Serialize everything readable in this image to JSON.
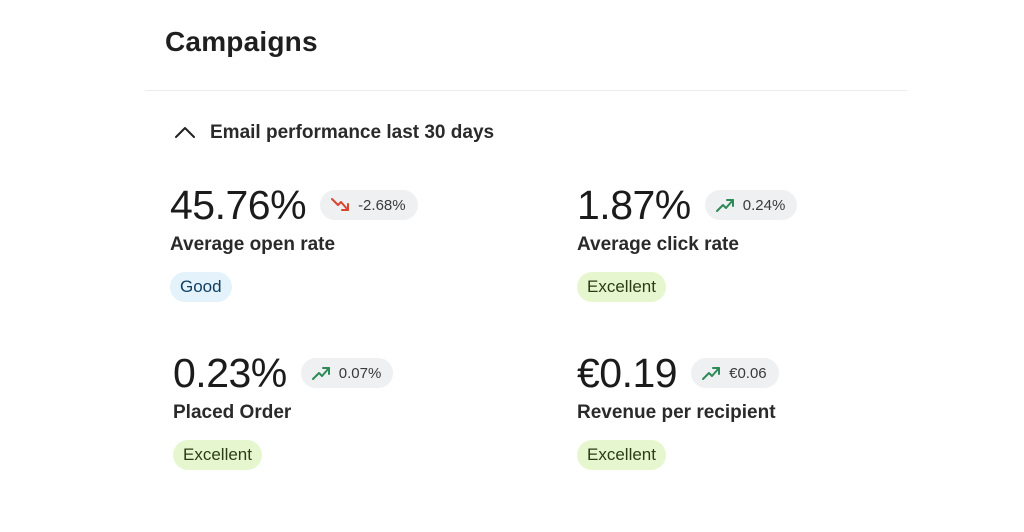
{
  "page": {
    "title": "Campaigns"
  },
  "section": {
    "title": "Email performance last 30 days",
    "toggle_icon": "chevron-up-icon"
  },
  "metrics": [
    {
      "value": "45.76%",
      "delta": "-2.68%",
      "trend": "down",
      "trend_icon": "trend-down-icon",
      "label": "Average open rate",
      "rating": "Good"
    },
    {
      "value": "1.87%",
      "delta": "0.24%",
      "trend": "up",
      "trend_icon": "trend-up-icon",
      "label": "Average click rate",
      "rating": "Excellent"
    },
    {
      "value": "0.23%",
      "delta": "0.07%",
      "trend": "up",
      "trend_icon": "trend-up-icon",
      "label": "Placed Order",
      "rating": "Excellent"
    },
    {
      "value": "€0.19",
      "delta": "€0.06",
      "trend": "up",
      "trend_icon": "trend-up-icon",
      "label": "Revenue per recipient",
      "rating": "Excellent"
    }
  ],
  "colors": {
    "trend_up": "#2e8b57",
    "trend_down": "#d9452f",
    "badge_good_bg": "#e3f2fb",
    "badge_excellent_bg": "#e6f7cf"
  }
}
